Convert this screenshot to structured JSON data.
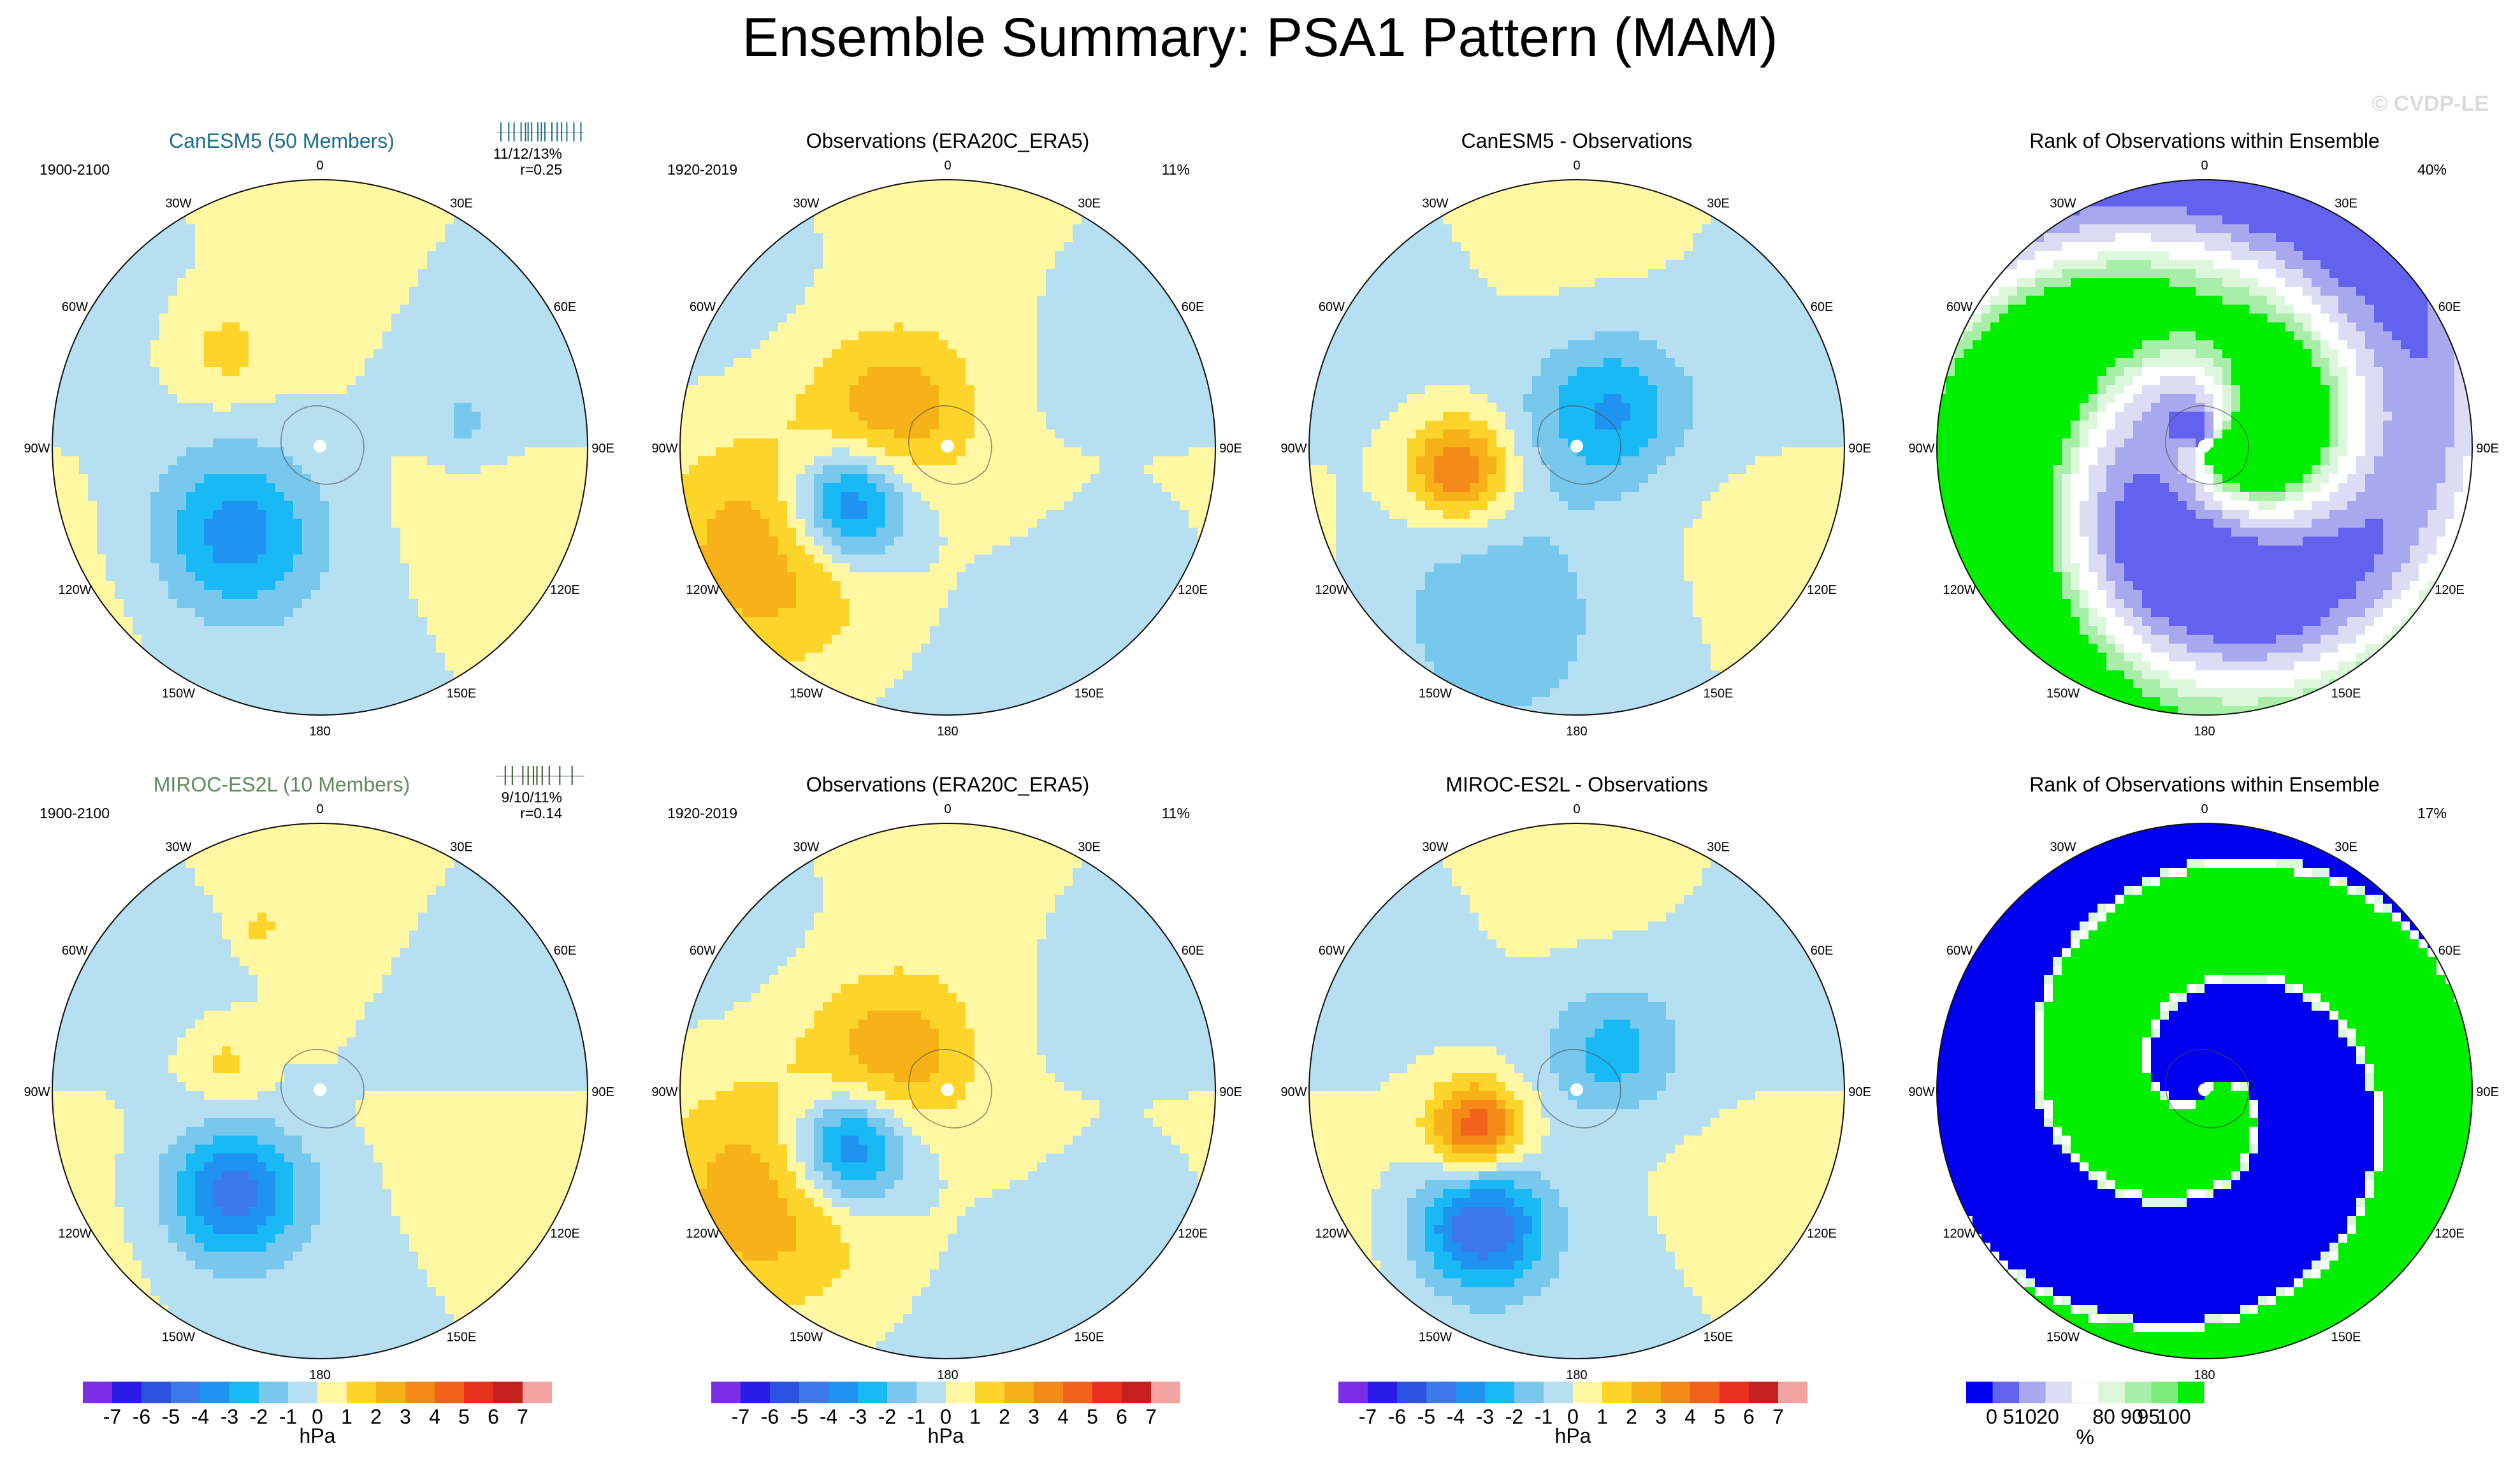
{
  "title": "Ensemble Summary: PSA1 Pattern (MAM)",
  "watermark": "© CVDP-LE",
  "colors": {
    "ocean_label_blue": "#1a6e8c",
    "miroc_green": "#5f8a5f",
    "pale_yellow": "#fff7a1",
    "pale_blue": "#b3dff1"
  },
  "chart_data": [
    {
      "type": "heatmap",
      "title": "CanESM5 (50 Members)",
      "period": "1900-2100",
      "stat_text": "11/12/13%",
      "r_text": "r=0.25",
      "pct": "",
      "panel_kind": "ensemble",
      "tint": "blue",
      "rank_dots": [
        0.05,
        0.14,
        0.2,
        0.28,
        0.33,
        0.36,
        0.4,
        0.47,
        0.51,
        0.55,
        0.63,
        0.69,
        0.74,
        0.8,
        0.88,
        0.96
      ],
      "field": [
        {
          "lon": 0,
          "lat_frac": 0.0,
          "amp": 0.0
        }
      ],
      "blobs": [
        {
          "lon": -135,
          "lat_frac": 0.45,
          "amp": -3.6,
          "w": 0.22
        },
        {
          "lon": -45,
          "lat_frac": 0.5,
          "amp": 1.4,
          "w": 0.14
        },
        {
          "lon": 80,
          "lat_frac": 0.55,
          "amp": -1.2,
          "w": 0.08
        }
      ],
      "mode": "anom"
    },
    {
      "type": "heatmap",
      "title": "Observations (ERA20C_ERA5)",
      "period": "1920-2019",
      "stat_text": "",
      "r_text": "",
      "pct": "11%",
      "panel_kind": "obs",
      "blobs": [
        {
          "lon": -120,
          "lat_frac": 0.42,
          "amp": -5.5,
          "w": 0.16
        },
        {
          "lon": -60,
          "lat_frac": 0.25,
          "amp": 2.8,
          "w": 0.22
        },
        {
          "lon": -120,
          "lat_frac": 0.75,
          "amp": 2.6,
          "w": 0.3
        },
        {
          "lon": 130,
          "lat_frac": 0.85,
          "amp": -1.2,
          "w": 0.2
        }
      ],
      "mode": "anom"
    },
    {
      "type": "heatmap",
      "title": "CanESM5 - Observations",
      "period": "",
      "stat_text": "",
      "r_text": "",
      "pct": "",
      "panel_kind": "diff",
      "blobs": [
        {
          "lon": -100,
          "lat_frac": 0.45,
          "amp": 4.2,
          "w": 0.13
        },
        {
          "lon": 40,
          "lat_frac": 0.18,
          "amp": -3.1,
          "w": 0.2
        },
        {
          "lon": -150,
          "lat_frac": 0.7,
          "amp": -1.6,
          "w": 0.32
        }
      ],
      "mode": "anom"
    },
    {
      "type": "heatmap",
      "title": "Rank of Observations within Ensemble",
      "period": "",
      "stat_text": "",
      "r_text": "",
      "pct": "40%",
      "panel_kind": "rank",
      "variant": 1,
      "mode": "rank"
    },
    {
      "type": "heatmap",
      "title": "MIROC-ES2L (10 Members)",
      "period": "1900-2100",
      "stat_text": "9/10/11%",
      "r_text": "r=0.14",
      "pct": "",
      "panel_kind": "ensemble",
      "tint": "green",
      "rank_dots": [
        0.1,
        0.18,
        0.3,
        0.36,
        0.42,
        0.46,
        0.52,
        0.6,
        0.72,
        0.86
      ],
      "blobs": [
        {
          "lon": -140,
          "lat_frac": 0.5,
          "amp": -4.5,
          "w": 0.18
        },
        {
          "lon": -75,
          "lat_frac": 0.35,
          "amp": 1.4,
          "w": 0.1
        },
        {
          "lon": -20,
          "lat_frac": 0.65,
          "amp": 1.3,
          "w": 0.05
        }
      ],
      "mode": "anom"
    },
    {
      "type": "heatmap",
      "title": "Observations (ERA20C_ERA5)",
      "period": "1920-2019",
      "stat_text": "",
      "r_text": "",
      "pct": "11%",
      "panel_kind": "obs",
      "blobs": [
        {
          "lon": -120,
          "lat_frac": 0.42,
          "amp": -5.5,
          "w": 0.16
        },
        {
          "lon": -60,
          "lat_frac": 0.25,
          "amp": 2.8,
          "w": 0.22
        },
        {
          "lon": -120,
          "lat_frac": 0.75,
          "amp": 2.6,
          "w": 0.3
        },
        {
          "lon": 130,
          "lat_frac": 0.85,
          "amp": -1.2,
          "w": 0.2
        }
      ],
      "mode": "anom"
    },
    {
      "type": "heatmap",
      "title": "MIROC-ES2L - Observations",
      "period": "",
      "stat_text": "",
      "r_text": "",
      "pct": "",
      "panel_kind": "diff",
      "blobs": [
        {
          "lon": -110,
          "lat_frac": 0.4,
          "amp": 4.8,
          "w": 0.12
        },
        {
          "lon": -145,
          "lat_frac": 0.62,
          "amp": -5.0,
          "w": 0.17
        },
        {
          "lon": 40,
          "lat_frac": 0.2,
          "amp": -2.4,
          "w": 0.18
        }
      ],
      "mode": "anom"
    },
    {
      "type": "heatmap",
      "title": "Rank of Observations within Ensemble",
      "period": "",
      "stat_text": "",
      "r_text": "",
      "pct": "17%",
      "panel_kind": "rank",
      "variant": 2,
      "mode": "rank"
    }
  ],
  "lon_labels": [
    "0",
    "30E",
    "60E",
    "90E",
    "120E",
    "150E",
    "180",
    "150W",
    "120W",
    "90W",
    "60W",
    "30W"
  ],
  "colorbar_anom": {
    "labels": [
      "-7",
      "-6",
      "-5",
      "-4",
      "-3",
      "-2",
      "-1",
      "0",
      "1",
      "2",
      "3",
      "4",
      "5",
      "6",
      "7"
    ],
    "unit": "hPa",
    "colors": [
      "#7b2ee6",
      "#2b1be6",
      "#2b52e0",
      "#3d79e8",
      "#1e93f0",
      "#19b9f5",
      "#77c8ec",
      "#b6dff1",
      "#fff7a1",
      "#fcd42a",
      "#f8b219",
      "#f48a17",
      "#f2621a",
      "#e8301e",
      "#c51f1f",
      "#f4a3a3"
    ]
  },
  "colorbar_rank": {
    "labels": [
      "0",
      "5",
      "10",
      "20",
      "80",
      "90",
      "95",
      "100"
    ],
    "unit": "%",
    "colors": [
      "#0000ee",
      "#6262ee",
      "#a8a8ee",
      "#dcdcf5",
      "#ffffff",
      "#dcf7dc",
      "#a8eea8",
      "#7beb7b",
      "#00ee00"
    ]
  }
}
